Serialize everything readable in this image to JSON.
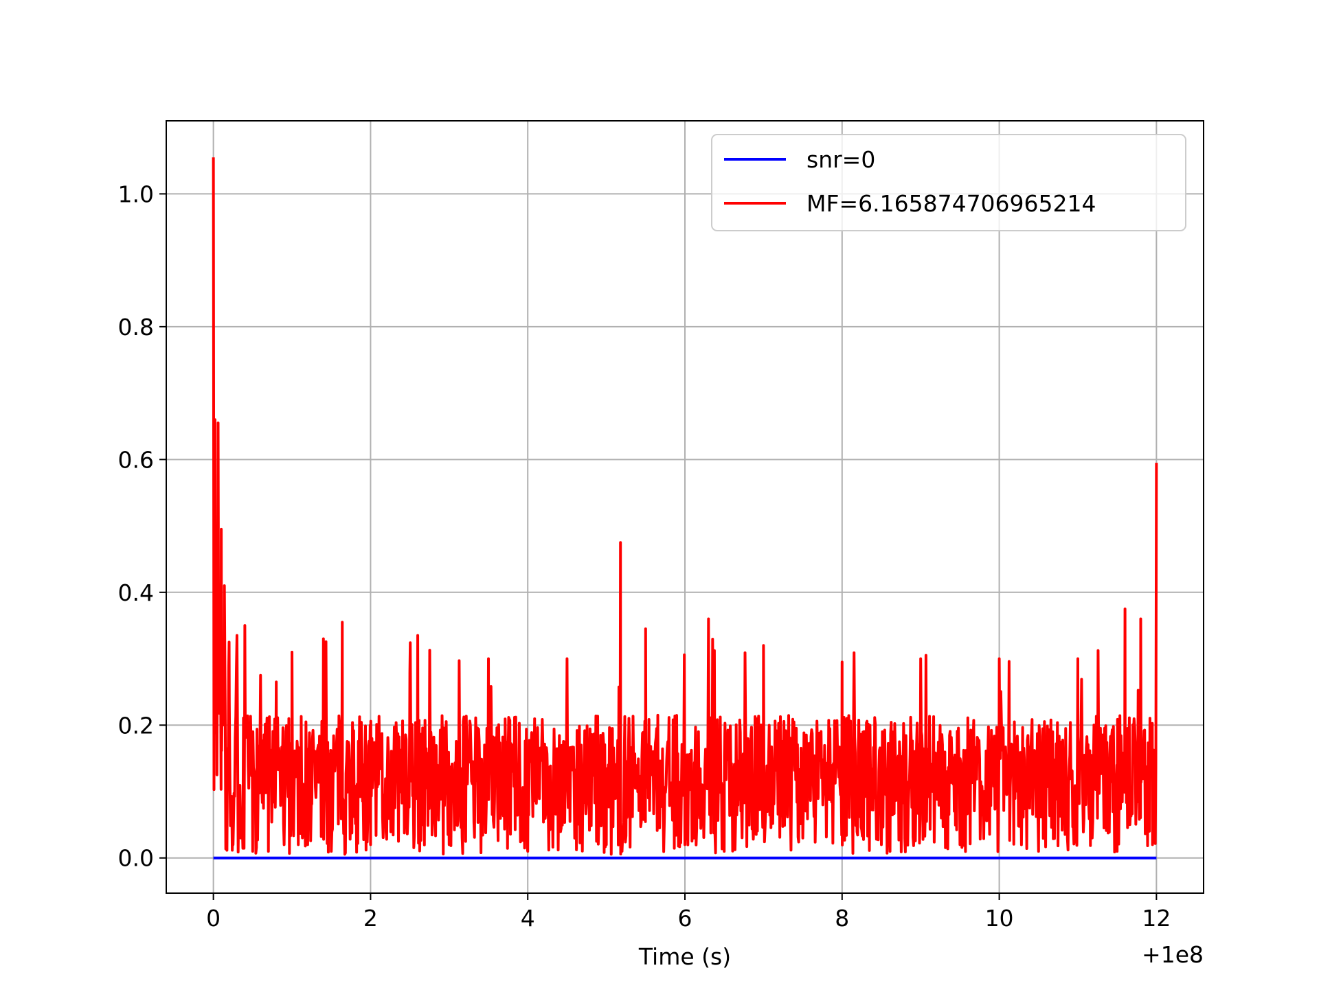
{
  "chart_data": {
    "type": "line",
    "title": "",
    "xlabel": "Time (s)",
    "ylabel": "",
    "x_offset_label": "+1e8",
    "xlim": [
      -0.6,
      12.6
    ],
    "ylim": [
      -0.053,
      1.11
    ],
    "x_ticks": [
      0,
      2,
      4,
      6,
      8,
      10,
      12
    ],
    "x_tick_labels": [
      "0",
      "2",
      "4",
      "6",
      "8",
      "10",
      "12"
    ],
    "y_ticks": [
      0.0,
      0.2,
      0.4,
      0.6,
      0.8,
      1.0
    ],
    "y_tick_labels": [
      "0.0",
      "0.2",
      "0.4",
      "0.6",
      "0.8",
      "1.0"
    ],
    "grid": true,
    "legend_position": "upper right",
    "series": [
      {
        "name": "snr=0",
        "color": "#0000ff",
        "x": [
          0,
          12
        ],
        "values": [
          0,
          0
        ]
      },
      {
        "name": "MF=6.165874706965214",
        "color": "#ff0000",
        "noise": {
          "seed": 7,
          "samples": 1600,
          "x_min": 0,
          "x_max": 12,
          "floor": 0.005
        },
        "x": [
          0.0,
          0.02,
          0.04,
          0.06,
          0.08,
          0.1,
          0.12,
          0.14,
          0.16,
          0.2,
          0.25,
          0.3,
          0.35,
          0.4,
          0.5,
          0.6,
          0.7,
          0.8,
          0.9,
          1.0,
          1.2,
          1.4,
          1.5,
          1.64,
          2.0,
          2.5,
          2.6,
          3.0,
          3.5,
          4.0,
          4.5,
          5.0,
          5.18,
          5.2,
          5.5,
          6.0,
          6.3,
          6.5,
          7.0,
          7.5,
          8.0,
          8.5,
          9.0,
          9.5,
          10.0,
          10.5,
          11.0,
          11.5,
          11.6,
          11.8,
          11.95,
          12.0
        ],
        "values": [
          1.055,
          0.66,
          0.49,
          0.655,
          0.25,
          0.495,
          0.2,
          0.41,
          0.07,
          0.325,
          0.02,
          0.335,
          0.03,
          0.35,
          0.01,
          0.275,
          0.01,
          0.265,
          0.02,
          0.31,
          0.02,
          0.33,
          0.01,
          0.355,
          0.02,
          0.28,
          0.335,
          0.02,
          0.3,
          0.01,
          0.3,
          0.02,
          0.475,
          0.01,
          0.345,
          0.02,
          0.36,
          0.01,
          0.32,
          0.03,
          0.295,
          0.02,
          0.3,
          0.02,
          0.3,
          0.01,
          0.3,
          0.01,
          0.375,
          0.36,
          0.02,
          0.595
        ]
      }
    ]
  }
}
